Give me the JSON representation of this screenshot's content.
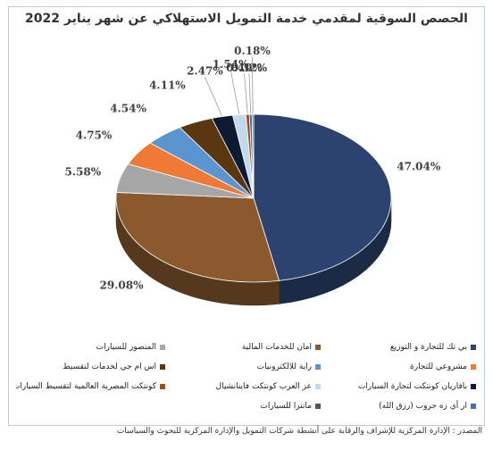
{
  "chart_data": {
    "type": "pie",
    "title": "الحصص السوقية لمقدمي خدمة التمويل الاستهلاكي عن شهر يناير 2022",
    "values": [
      47.04,
      29.08,
      5.58,
      4.75,
      4.54,
      4.11,
      2.47,
      1.54,
      0.4,
      0.32,
      0.18
    ],
    "labels": [
      "47.04%",
      "29.08%",
      "5.58%",
      "4.75%",
      "4.54%",
      "4.11%",
      "2.47%",
      "1.54%",
      "0.40%",
      "0.32%",
      "0.18%"
    ],
    "categories": [
      "بي تك للتجارة و التوزيع",
      "امان للخدمات المالية",
      "المنصور للسيارات",
      "مشروعي للتجارة",
      "راية للالكترونيات",
      "اس ام جي لخدمات لتقسيط",
      "بافاريان كونتكت لتجارة السيارات",
      "عز العرب كونتكت فاينانشيال",
      "كونتكت المصرية العالمية لتقسيط السيارات",
      "ار أي زه جروب (رزق الله)",
      "مانترا للسيارات"
    ],
    "colors": [
      "#2c4370",
      "#8a5a2e",
      "#a6a6a6",
      "#ee7a35",
      "#5b95d0",
      "#5b3710",
      "#0c1a33",
      "#c2d9ee",
      "#a14e1a",
      "#4a6fb0",
      "#555555"
    ],
    "legend_position": "bottom",
    "three_d": true
  },
  "source_text": "المصدر : الإدارة المركزية للإشراف والرقابة على أنشطة شركات التمويل والإدارة المركزية للبحوث والسياسات"
}
